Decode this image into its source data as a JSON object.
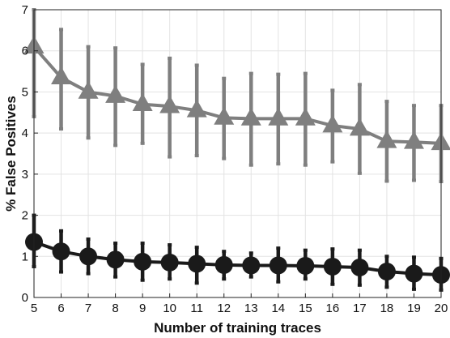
{
  "chart_data": {
    "type": "line",
    "xlabel": "Number of training traces",
    "ylabel": "% False Positives",
    "xlim": [
      5,
      20
    ],
    "ylim": [
      0,
      7
    ],
    "x_ticks": [
      5,
      6,
      7,
      8,
      9,
      10,
      11,
      12,
      13,
      14,
      15,
      16,
      17,
      18,
      19,
      20
    ],
    "y_ticks": [
      0,
      1,
      2,
      3,
      4,
      5,
      6,
      7
    ],
    "grid": true,
    "legend": "none",
    "x": [
      5,
      6,
      7,
      8,
      9,
      10,
      11,
      12,
      13,
      14,
      15,
      16,
      17,
      18,
      19,
      20
    ],
    "series": [
      {
        "marker": "triangle",
        "color": "#7f7f7f",
        "values": [
          6.1,
          5.35,
          5.0,
          4.9,
          4.7,
          4.65,
          4.55,
          4.37,
          4.35,
          4.35,
          4.35,
          4.18,
          4.1,
          3.8,
          3.78,
          3.75
        ],
        "error_low": [
          4.4,
          4.1,
          3.88,
          3.7,
          3.75,
          3.42,
          3.45,
          3.38,
          3.22,
          3.25,
          3.22,
          3.3,
          3.02,
          2.83,
          2.85,
          2.82
        ],
        "error_high": [
          7.0,
          6.52,
          6.1,
          6.07,
          5.67,
          5.82,
          5.65,
          5.33,
          5.45,
          5.43,
          5.45,
          5.04,
          5.18,
          4.77,
          4.67,
          4.67
        ]
      },
      {
        "marker": "circle",
        "color": "#1a1a1a",
        "values": [
          1.35,
          1.12,
          1.0,
          0.92,
          0.87,
          0.85,
          0.82,
          0.79,
          0.78,
          0.78,
          0.77,
          0.75,
          0.73,
          0.63,
          0.58,
          0.55
        ],
        "error_low": [
          0.75,
          0.62,
          0.58,
          0.5,
          0.42,
          0.45,
          0.35,
          0.45,
          0.5,
          0.38,
          0.45,
          0.32,
          0.3,
          0.25,
          0.2,
          0.18
        ],
        "error_high": [
          2.0,
          1.62,
          1.42,
          1.32,
          1.32,
          1.28,
          1.22,
          1.12,
          1.08,
          1.2,
          1.15,
          1.18,
          1.15,
          1.0,
          0.98,
          0.95
        ]
      }
    ]
  }
}
